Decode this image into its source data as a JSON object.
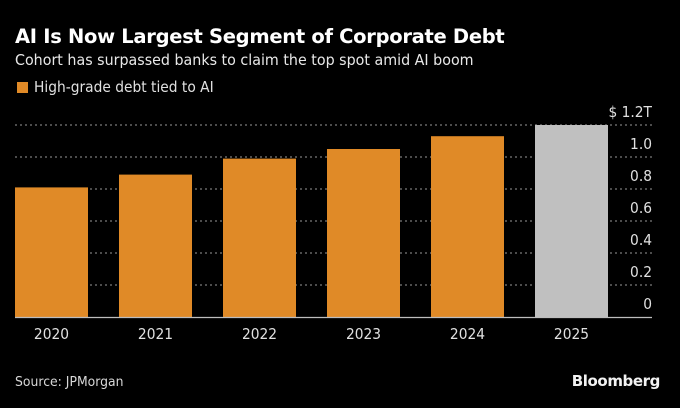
{
  "header": {
    "title": "AI Is Now Largest Segment of Corporate Debt",
    "subtitle": "Cohort has surpassed banks to claim the top spot amid AI boom"
  },
  "footer": {
    "source": "Source: JPMorgan",
    "brand": "Bloomberg"
  },
  "colors": {
    "background": "#000000",
    "series": "#e08a27",
    "highlight": "#c0c0c0",
    "grid": "#7a7a7a",
    "axis_text": "#e0e0e0"
  },
  "chart_data": {
    "type": "bar",
    "title": "AI Is Now Largest Segment of Corporate Debt",
    "subtitle": "Cohort has surpassed banks to claim the top spot amid AI boom",
    "categories": [
      "2020",
      "2021",
      "2022",
      "2023",
      "2024",
      "2025"
    ],
    "series": [
      {
        "name": "High-grade debt tied to AI",
        "values": [
          0.81,
          0.89,
          0.99,
          1.05,
          1.13,
          1.2
        ],
        "unit": "trillion USD"
      }
    ],
    "highlight_categories": [
      "2025"
    ],
    "xlabel": "",
    "ylabel": "",
    "ylim": [
      0,
      1.2
    ],
    "yticks": [
      0,
      0.2,
      0.4,
      0.6,
      0.8,
      1.0,
      1.2
    ],
    "ytick_labels": [
      "0",
      "0.2",
      "0.4",
      "0.6",
      "0.8",
      "1.0",
      "$ 1.2T"
    ],
    "y_axis_side": "right",
    "grid": true,
    "legend": {
      "position": "top-left",
      "entries": [
        "High-grade debt tied to AI"
      ]
    },
    "source": "Source: JPMorgan"
  }
}
